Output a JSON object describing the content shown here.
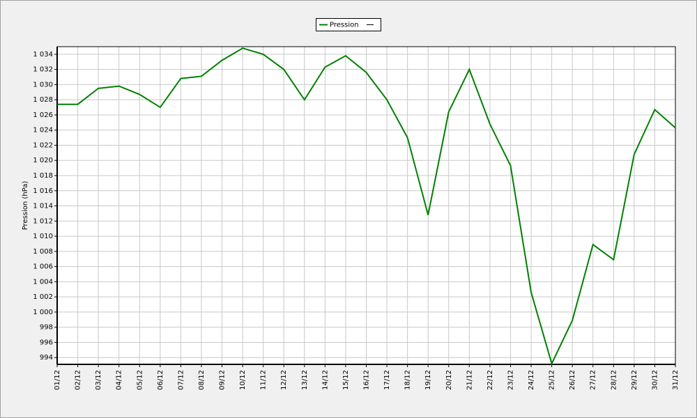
{
  "chart_data": {
    "type": "line",
    "y_label": "Pression (hPa)",
    "legend": "top",
    "grid": true,
    "categories": [
      "01/12",
      "02/12",
      "03/12",
      "04/12",
      "05/12",
      "06/12",
      "07/12",
      "08/12",
      "09/12",
      "10/12",
      "11/12",
      "12/12",
      "13/12",
      "14/12",
      "15/12",
      "16/12",
      "17/12",
      "18/12",
      "19/12",
      "20/12",
      "21/12",
      "22/12",
      "23/12",
      "24/12",
      "25/12",
      "26/12",
      "27/12",
      "28/12",
      "29/12",
      "30/12",
      "31/12"
    ],
    "series": [
      {
        "name": "Pression",
        "color": "#008000",
        "values": [
          1027.4,
          1027.4,
          1029.5,
          1029.8,
          1028.7,
          1027.0,
          1030.8,
          1031.1,
          1033.2,
          1034.8,
          1034.0,
          1032.0,
          1028.0,
          1032.3,
          1033.8,
          1031.6,
          1028.0,
          1023.0,
          1012.8,
          1026.4,
          1032.0,
          1024.8,
          1019.3,
          1002.6,
          993.2,
          998.9,
          1008.9,
          1006.9,
          1020.8,
          1026.7,
          1024.3
        ]
      }
    ],
    "ylim": [
      993.1,
      1035.0
    ],
    "yticks": [
      994,
      996,
      998,
      {
        "value": 1000,
        "label": "1 000"
      },
      {
        "value": 1002,
        "label": "1 002"
      },
      {
        "value": 1004,
        "label": "1 004"
      },
      {
        "value": 1006,
        "label": "1 006"
      },
      {
        "value": 1008,
        "label": "1 008"
      },
      {
        "value": 1010,
        "label": "1 010"
      },
      {
        "value": 1012,
        "label": "1 012"
      },
      {
        "value": 1014,
        "label": "1 014"
      },
      {
        "value": 1016,
        "label": "1 016"
      },
      {
        "value": 1018,
        "label": "1 018"
      },
      {
        "value": 1020,
        "label": "1 020"
      },
      {
        "value": 1022,
        "label": "1 022"
      },
      {
        "value": 1024,
        "label": "1 024"
      },
      {
        "value": 1026,
        "label": "1 026"
      },
      {
        "value": 1028,
        "label": "1 028"
      },
      {
        "value": 1030,
        "label": "1 030"
      },
      {
        "value": 1032,
        "label": "1 032"
      },
      {
        "value": 1034,
        "label": "1 034"
      }
    ]
  }
}
